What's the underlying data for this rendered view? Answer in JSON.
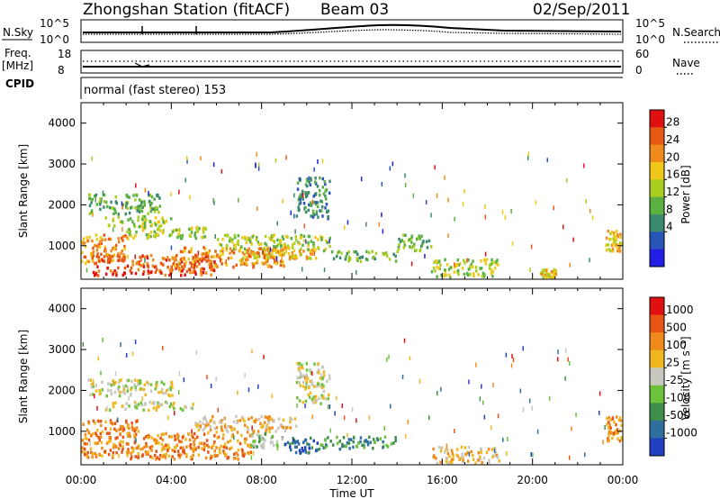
{
  "header": {
    "station_title": "Zhongshan Station (fitACF)",
    "beam": "Beam 03",
    "date": "02/Sep/2011"
  },
  "status_panels": {
    "nsky_label": "N.Sky",
    "nsky_ticks": [
      "10^5",
      "10^0"
    ],
    "nsearch_label": "N.Search",
    "nsearch_ticks": [
      "10^5",
      "10^0"
    ],
    "freq_label": "Freq.",
    "freq_unit": "[MHz]",
    "freq_ticks": [
      "18",
      "8"
    ],
    "nave_label": "Nave",
    "nave_ticks": [
      "60",
      "0"
    ],
    "cpid_label": "CPID",
    "cpid_value": "normal (fast stereo) 153"
  },
  "chart_data": [
    {
      "type": "heatmap",
      "name": "power",
      "ylabel": "Slant Range [km]",
      "yticks": [
        "4000",
        "3000",
        "2000",
        "1000"
      ],
      "ylim": [
        180,
        4500
      ],
      "xlim_hours": [
        0,
        24
      ],
      "colorbar": {
        "label": "Power [dB]",
        "ticks": [
          "28",
          "24",
          "20",
          "16",
          "12",
          "8",
          "4"
        ],
        "colors": [
          "#1f1fe6",
          "#2a55b8",
          "#3c8a6e",
          "#5ab040",
          "#a8cf20",
          "#f0c818",
          "#f08a1a",
          "#e85a14",
          "#e01010"
        ]
      },
      "regions": [
        {
          "t0": 0.0,
          "t1": 2.0,
          "r0": 600,
          "r1": 1300,
          "level": 6
        },
        {
          "t0": 0.5,
          "t1": 6.0,
          "r0": 300,
          "r1": 800,
          "level": 7
        },
        {
          "t0": 0.3,
          "t1": 3.5,
          "r0": 1800,
          "r1": 2300,
          "level": 3
        },
        {
          "t0": 1.0,
          "t1": 4.0,
          "r0": 1500,
          "r1": 1750,
          "level": 4
        },
        {
          "t0": 2.0,
          "t1": 5.5,
          "r0": 1200,
          "r1": 1500,
          "level": 4
        },
        {
          "t0": 4.0,
          "t1": 9.0,
          "r0": 500,
          "r1": 1000,
          "level": 6
        },
        {
          "t0": 6.0,
          "t1": 11.0,
          "r0": 900,
          "r1": 1300,
          "level": 4
        },
        {
          "t0": 7.0,
          "t1": 10.5,
          "r0": 700,
          "r1": 1000,
          "level": 5
        },
        {
          "t0": 9.5,
          "t1": 11.0,
          "r0": 1700,
          "r1": 2700,
          "level": 2
        },
        {
          "t0": 11.0,
          "t1": 14.0,
          "r0": 650,
          "r1": 900,
          "level": 3
        },
        {
          "t0": 14.0,
          "t1": 15.5,
          "r0": 900,
          "r1": 1300,
          "level": 3
        },
        {
          "t0": 15.5,
          "t1": 18.5,
          "r0": 250,
          "r1": 700,
          "level": 4
        },
        {
          "t0": 20.3,
          "t1": 21.0,
          "r0": 250,
          "r1": 450,
          "level": 5
        },
        {
          "t0": 23.2,
          "t1": 23.9,
          "r0": 900,
          "r1": 1400,
          "level": 5
        }
      ]
    },
    {
      "type": "heatmap",
      "name": "velocity",
      "ylabel": "Slant Range [km]",
      "yticks": [
        "4000",
        "3000",
        "2000",
        "1000"
      ],
      "ylim": [
        180,
        4500
      ],
      "xlim_hours": [
        0,
        24
      ],
      "xticks": [
        "00:00",
        "04:00",
        "08:00",
        "12:00",
        "16:00",
        "20:00",
        "00:00"
      ],
      "xlabel": "Time UT",
      "colorbar": {
        "label": "Velocity [m s⁻¹]",
        "ticks": [
          "1000",
          "500",
          "100",
          "25",
          "-25",
          "-100",
          "-500",
          "-1000"
        ],
        "colors": [
          "#2040c0",
          "#2f6fa0",
          "#3e8e4a",
          "#6cc23a",
          "#c8c8c0",
          "#f0b820",
          "#f08a1a",
          "#e85414",
          "#e01010"
        ]
      },
      "regions": [
        {
          "t0": 0.0,
          "t1": 2.5,
          "r0": 400,
          "r1": 1300,
          "level": 6
        },
        {
          "t0": 0.3,
          "t1": 4.0,
          "r0": 1900,
          "r1": 2300,
          "level": 4
        },
        {
          "t0": 1.0,
          "t1": 5.0,
          "r0": 1550,
          "r1": 1750,
          "level": 4
        },
        {
          "t0": 2.0,
          "t1": 7.5,
          "r0": 350,
          "r1": 1000,
          "level": 6
        },
        {
          "t0": 5.0,
          "t1": 9.5,
          "r0": 1000,
          "r1": 1400,
          "level": 5
        },
        {
          "t0": 7.5,
          "t1": 9.0,
          "r0": 600,
          "r1": 1000,
          "level": 3
        },
        {
          "t0": 9.0,
          "t1": 10.5,
          "r0": 500,
          "r1": 900,
          "level": 1
        },
        {
          "t0": 10.5,
          "t1": 14.0,
          "r0": 600,
          "r1": 900,
          "level": 2
        },
        {
          "t0": 9.5,
          "t1": 11.0,
          "r0": 1700,
          "r1": 2700,
          "level": 4
        },
        {
          "t0": 15.5,
          "t1": 18.5,
          "r0": 250,
          "r1": 650,
          "level": 5
        },
        {
          "t0": 23.2,
          "t1": 23.9,
          "r0": 800,
          "r1": 1400,
          "level": 6
        }
      ]
    }
  ]
}
